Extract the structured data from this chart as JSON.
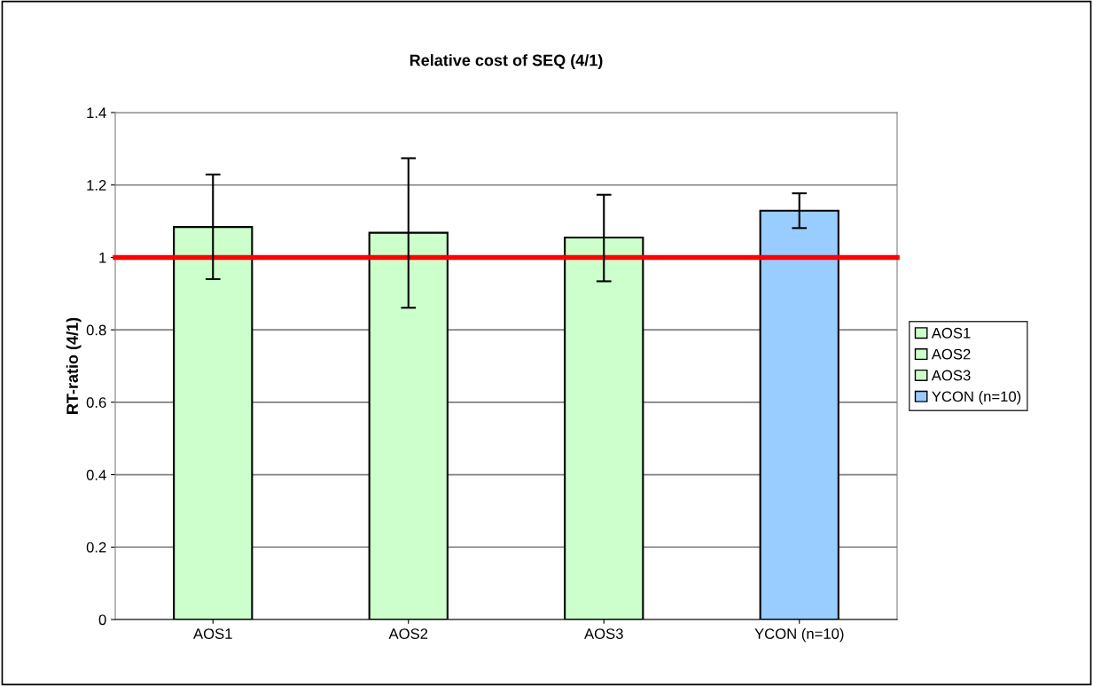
{
  "chart_data": {
    "type": "bar",
    "title": "Relative cost of SEQ (4/1)",
    "ylabel": "RT-ratio (4/1)",
    "categories": [
      "AOS1",
      "AOS2",
      "AOS3",
      "YCON (n=10)"
    ],
    "series": [
      {
        "name": "AOS1",
        "color": "#ccffcc",
        "values": [
          1.084,
          null,
          null,
          null
        ],
        "errors": [
          [
            0.94,
            1.229
          ],
          null,
          null,
          null
        ]
      },
      {
        "name": "AOS2",
        "color": "#ccffcc",
        "values": [
          null,
          1.068,
          null,
          null
        ],
        "errors": [
          null,
          [
            0.861,
            1.274
          ],
          null,
          null
        ]
      },
      {
        "name": "AOS3",
        "color": "#ccffcc",
        "values": [
          null,
          null,
          1.055,
          null
        ],
        "errors": [
          null,
          null,
          [
            0.934,
            1.173
          ],
          null
        ]
      },
      {
        "name": "YCON (n=10)",
        "color": "#99ccff",
        "values": [
          null,
          null,
          null,
          1.129
        ],
        "errors": [
          null,
          null,
          null,
          [
            1.081,
            1.177
          ]
        ]
      }
    ],
    "ylim": [
      0,
      1.4
    ],
    "yticks": [
      0,
      0.2,
      0.4,
      0.6,
      0.8,
      1,
      1.2,
      1.4
    ],
    "grid": "y",
    "legend": "right",
    "ref_lines": [
      {
        "axis": "y",
        "value": 1,
        "color": "#ff0000",
        "line_style": "solid"
      }
    ]
  }
}
